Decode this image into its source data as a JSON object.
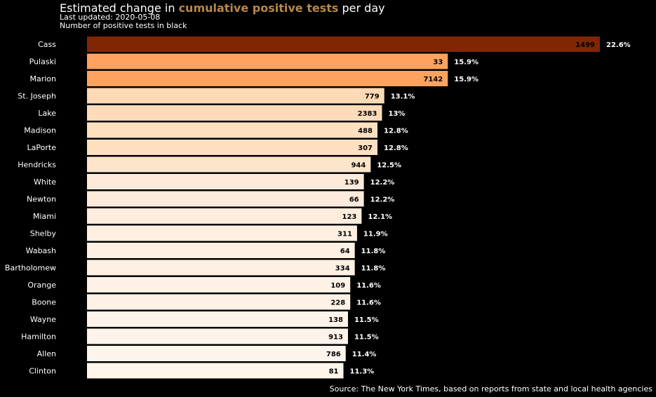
{
  "title": {
    "prefix": "Estimated change in ",
    "highlight": "cumulative positive tests",
    "suffix": " per day",
    "highlight_color": "#b8874a"
  },
  "subtitle_1": "Last updated: 2020-05-08",
  "subtitle_2": "Number of positive tests in black",
  "source": "Source: The New York Times, based on reports from state and local health agencies",
  "colors": {
    "background": "#000000",
    "text": "#ffffff",
    "count_label": "#000000"
  },
  "chart_data": {
    "type": "bar",
    "orientation": "horizontal",
    "categories": [
      "Cass",
      "Pulaski",
      "Marion",
      "St. Joseph",
      "Lake",
      "Madison",
      "LaPorte",
      "Hendricks",
      "White",
      "Newton",
      "Miami",
      "Shelby",
      "Wabash",
      "Bartholomew",
      "Orange",
      "Boone",
      "Wayne",
      "Hamilton",
      "Allen",
      "Clinton"
    ],
    "values": [
      22.6,
      15.9,
      15.9,
      13.1,
      13.0,
      12.8,
      12.8,
      12.5,
      12.2,
      12.2,
      12.1,
      11.9,
      11.8,
      11.8,
      11.6,
      11.6,
      11.5,
      11.5,
      11.4,
      11.3
    ],
    "value_labels": [
      "22.6%",
      "15.9%",
      "15.9%",
      "13.1%",
      "13%",
      "12.8%",
      "12.8%",
      "12.5%",
      "12.2%",
      "12.2%",
      "12.1%",
      "11.9%",
      "11.8%",
      "11.8%",
      "11.6%",
      "11.6%",
      "11.5%",
      "11.5%",
      "11.4%",
      "11.3%"
    ],
    "counts": [
      1499,
      33,
      7142,
      779,
      2383,
      488,
      307,
      944,
      139,
      66,
      123,
      311,
      64,
      334,
      109,
      228,
      138,
      913,
      786,
      81
    ],
    "bar_colors": [
      "#7f2704",
      "#fda35f",
      "#fda35f",
      "#fddab5",
      "#fddbb8",
      "#fde0c0",
      "#fde0c0",
      "#fde5cb",
      "#feeada",
      "#feeada",
      "#feecdd",
      "#feefe1",
      "#fef0e3",
      "#fef0e3",
      "#fef2e7",
      "#fef2e7",
      "#fef3ea",
      "#fef3ea",
      "#fef4ec",
      "#fff5eb"
    ],
    "grid": false,
    "legend": "none",
    "xlim": [
      0,
      22.6
    ]
  }
}
